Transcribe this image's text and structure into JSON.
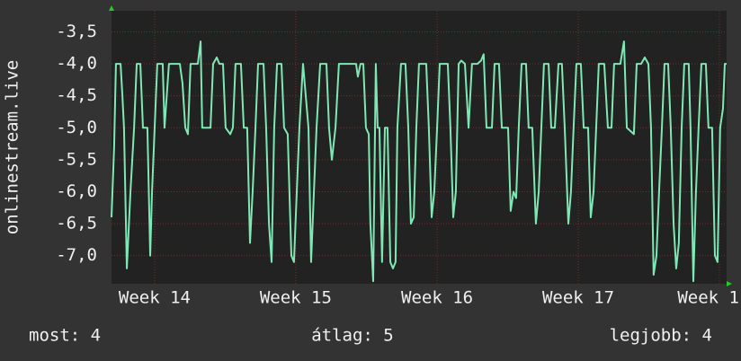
{
  "chart_data": {
    "type": "line",
    "y_label": "onlinestream.live",
    "x": [
      0,
      0.13,
      0.22,
      0.45,
      0.54,
      0.62,
      0.76,
      0.94,
      1.12,
      1.25,
      1.43,
      1.56,
      1.78,
      1.92,
      2.01,
      2.14,
      2.27,
      2.54,
      2.63,
      2.85,
      3.39,
      3.52,
      3.66,
      3.79,
      3.92,
      4.28,
      4.42,
      4.5,
      4.91,
      5.04,
      5.22,
      5.35,
      5.53,
      5.66,
      5.89,
      6.02,
      6.15,
      6.42,
      6.56,
      6.73,
      6.87,
      7.0,
      7.14,
      7.27,
      7.54,
      7.67,
      7.81,
      7.94,
      8.07,
      8.21,
      8.43,
      8.56,
      8.74,
      8.92,
      9.05,
      9.19,
      9.32,
      9.5,
      9.77,
      9.9,
      10.04,
      10.17,
      10.35,
      10.66,
      10.79,
      10.93,
      11.11,
      11.28,
      12.13,
      12.22,
      12.35,
      12.49,
      12.62,
      12.76,
      12.84,
      12.98,
      13.11,
      13.2,
      13.29,
      13.42,
      13.56,
      13.69,
      13.83,
      13.96,
      14.09,
      14.18,
      14.36,
      14.58,
      14.72,
      14.85,
      14.99,
      15.12,
      15.25,
      15.61,
      15.74,
      15.88,
      16.01,
      16.15,
      16.28,
      16.68,
      16.81,
      16.95,
      17.08,
      17.22,
      17.35,
      17.53,
      17.71,
      17.88,
      18.15,
      18.33,
      18.46,
      18.6,
      18.87,
      19.0,
      19.22,
      19.36,
      19.67,
      19.8,
      19.94,
      20.07,
      20.2,
      20.34,
      20.56,
      20.69,
      20.87,
      21.05,
      21.19,
      21.32,
      21.45,
      21.68,
      21.81,
      21.99,
      22.17,
      22.34,
      22.48,
      22.66,
      22.79,
      22.92,
      23.06,
      23.28,
      23.42,
      23.64,
      23.77,
      23.91,
      24.04,
      24.17,
      24.44,
      24.62,
      24.8,
      24.93,
      25.24,
      25.42,
      25.56,
      25.91,
      26.05,
      26.27,
      26.45,
      26.63,
      26.76,
      26.89,
      27.03,
      27.16,
      27.3,
      27.43,
      27.61,
      27.74,
      27.88,
      28.01,
      28.14,
      28.28,
      28.41,
      28.63,
      28.72,
      28.86,
      28.99,
      29.12,
      29.26,
      29.48,
      29.61,
      29.79,
      29.93,
      30.06,
      30.19,
      30.33,
      30.42,
      30.51
    ],
    "series": [
      {
        "color": "#7ee8b4",
        "values": [
          -6.4,
          -5.3,
          -4.0,
          -4.0,
          -4.5,
          -5.0,
          -7.2,
          -6.0,
          -5.0,
          -4.0,
          -4.0,
          -5.0,
          -5.0,
          -7.0,
          -6.0,
          -5.0,
          -4.0,
          -4.0,
          -5.0,
          -4.0,
          -4.0,
          -4.3,
          -5.0,
          -5.1,
          -4.0,
          -4.0,
          -3.65,
          -5.0,
          -5.0,
          -4.0,
          -3.9,
          -4.0,
          -4.0,
          -5.0,
          -5.1,
          -5.0,
          -4.0,
          -4.0,
          -5.0,
          -5.0,
          -6.8,
          -6.0,
          -5.0,
          -4.0,
          -4.0,
          -5.0,
          -6.5,
          -7.1,
          -5.0,
          -4.0,
          -4.0,
          -5.0,
          -5.1,
          -7.0,
          -7.1,
          -6.0,
          -5.0,
          -4.0,
          -5.0,
          -7.1,
          -6.0,
          -5.0,
          -4.0,
          -4.0,
          -5.0,
          -5.5,
          -5.0,
          -4.0,
          -4.0,
          -4.2,
          -4.0,
          -4.0,
          -5.0,
          -5.1,
          -6.5,
          -7.4,
          -4.0,
          -5.0,
          -5.0,
          -7.1,
          -5.0,
          -5.0,
          -7.1,
          -7.2,
          -7.1,
          -5.0,
          -4.0,
          -4.0,
          -5.0,
          -6.5,
          -6.4,
          -5.0,
          -4.0,
          -4.0,
          -5.0,
          -6.4,
          -6.0,
          -5.0,
          -4.0,
          -4.0,
          -5.0,
          -6.4,
          -6.0,
          -4.0,
          -3.95,
          -4.0,
          -5.0,
          -4.0,
          -4.0,
          -3.95,
          -3.85,
          -5.0,
          -5.0,
          -4.0,
          -4.0,
          -5.0,
          -5.0,
          -6.3,
          -6.0,
          -6.1,
          -5.0,
          -4.0,
          -4.0,
          -5.0,
          -5.0,
          -6.5,
          -6.0,
          -5.0,
          -4.0,
          -4.0,
          -5.0,
          -5.0,
          -4.0,
          -4.0,
          -5.0,
          -6.5,
          -6.0,
          -5.0,
          -4.0,
          -4.0,
          -5.0,
          -5.0,
          -6.4,
          -6.0,
          -5.0,
          -4.0,
          -4.0,
          -5.0,
          -5.0,
          -4.0,
          -4.0,
          -3.65,
          -5.0,
          -5.1,
          -4.0,
          -4.0,
          -3.9,
          -4.0,
          -5.0,
          -7.3,
          -7.0,
          -6.0,
          -5.0,
          -4.0,
          -4.0,
          -5.0,
          -6.5,
          -7.2,
          -6.8,
          -5.0,
          -4.0,
          -4.0,
          -5.0,
          -7.4,
          -6.0,
          -5.0,
          -4.0,
          -4.0,
          -5.0,
          -5.0,
          -7.0,
          -7.1,
          -5.0,
          -4.7,
          -4.0,
          -4.0
        ]
      }
    ],
    "xlim": [
      0,
      30.51
    ],
    "xticks": [
      {
        "value": 2.14,
        "label": "Week 14"
      },
      {
        "value": 9.14,
        "label": "Week 15"
      },
      {
        "value": 16.15,
        "label": "Week 16"
      },
      {
        "value": 23.15,
        "label": "Week 17"
      },
      {
        "value": 30.15,
        "label": "Week 1"
      }
    ],
    "ylim": [
      -7.44,
      -3.17
    ],
    "yticks": [
      {
        "value": -3.5,
        "label": "-3,5"
      },
      {
        "value": -4.0,
        "label": "-4,0"
      },
      {
        "value": -4.5,
        "label": "-4,5"
      },
      {
        "value": -5.0,
        "label": "-5,0"
      },
      {
        "value": -5.5,
        "label": "-5,5"
      },
      {
        "value": -6.0,
        "label": "-6,0"
      },
      {
        "value": -6.5,
        "label": "-6,5"
      },
      {
        "value": -7.0,
        "label": "-7,0"
      }
    ],
    "grid": true,
    "stats": [
      "most: 4",
      "átlag: 5",
      "legjobb: 4"
    ]
  }
}
